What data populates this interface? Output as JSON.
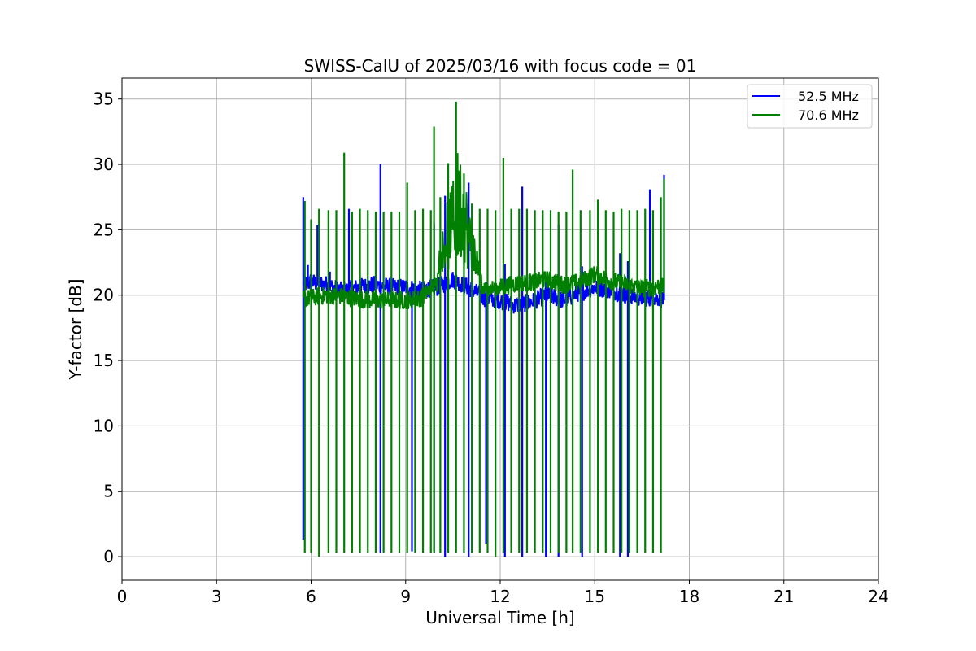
{
  "chart_data": {
    "type": "line",
    "title": "SWISS-CalU of 2025/03/16 with focus code = 01",
    "xlabel": "Universal Time [h]",
    "ylabel": "Y-factor [dB]",
    "xlim": [
      0,
      24
    ],
    "ylim": [
      -1.8,
      36.6
    ],
    "xticks": [
      0,
      3,
      6,
      9,
      12,
      15,
      18,
      21,
      24
    ],
    "yticks": [
      0,
      5,
      10,
      15,
      20,
      25,
      30,
      35
    ],
    "grid": true,
    "legend_position": "top-right",
    "series": [
      {
        "name": "52.5 MHz",
        "color": "#0000ff",
        "baseline": [
          [
            5.75,
            20.8
          ],
          [
            6.0,
            21.0
          ],
          [
            6.5,
            20.8
          ],
          [
            7.0,
            20.3
          ],
          [
            7.5,
            20.6
          ],
          [
            8.0,
            20.8
          ],
          [
            8.5,
            20.6
          ],
          [
            9.0,
            20.6
          ],
          [
            9.5,
            20.4
          ],
          [
            10.0,
            20.6
          ],
          [
            10.5,
            21.2
          ],
          [
            11.0,
            20.6
          ],
          [
            11.5,
            19.8
          ],
          [
            12.0,
            19.6
          ],
          [
            12.5,
            19.2
          ],
          [
            13.0,
            19.5
          ],
          [
            13.5,
            20.0
          ],
          [
            14.0,
            19.6
          ],
          [
            14.5,
            20.2
          ],
          [
            15.0,
            20.6
          ],
          [
            15.5,
            20.4
          ],
          [
            16.0,
            20.0
          ],
          [
            16.5,
            19.8
          ],
          [
            17.0,
            19.8
          ],
          [
            17.2,
            19.6
          ]
        ],
        "spikes": [
          [
            5.75,
            27.5,
            1.3
          ],
          [
            5.9,
            22.3,
            null
          ],
          [
            6.2,
            25.4,
            null
          ],
          [
            6.6,
            21.8,
            null
          ],
          [
            7.2,
            26.6,
            null
          ],
          [
            8.2,
            30.0,
            0.3
          ],
          [
            9.2,
            21.0,
            0.4
          ],
          [
            9.9,
            25.5,
            0.3
          ],
          [
            10.25,
            27.6,
            0.0
          ],
          [
            11.0,
            28.6,
            0.0
          ],
          [
            11.55,
            21.0,
            1.0
          ],
          [
            12.15,
            22.4,
            0.0
          ],
          [
            12.7,
            28.3,
            0.0
          ],
          [
            13.45,
            21.0,
            0.0
          ],
          [
            13.85,
            25.4,
            0.0
          ],
          [
            14.6,
            22.2,
            0.0
          ],
          [
            15.8,
            23.2,
            0.0
          ],
          [
            16.05,
            22.6,
            0.0
          ],
          [
            16.75,
            28.1,
            null
          ],
          [
            17.2,
            29.2,
            null
          ]
        ]
      },
      {
        "name": "70.6 MHz",
        "color": "#008000",
        "baseline": [
          [
            5.75,
            19.7
          ],
          [
            6.0,
            19.8
          ],
          [
            6.5,
            20.0
          ],
          [
            7.0,
            19.9
          ],
          [
            7.5,
            19.7
          ],
          [
            8.0,
            19.6
          ],
          [
            8.5,
            19.6
          ],
          [
            9.0,
            19.6
          ],
          [
            9.5,
            19.8
          ],
          [
            10.0,
            21.0
          ],
          [
            10.5,
            21.5
          ],
          [
            11.0,
            20.6
          ],
          [
            11.5,
            20.4
          ],
          [
            12.0,
            20.6
          ],
          [
            12.5,
            20.9
          ],
          [
            13.0,
            21.0
          ],
          [
            13.5,
            21.2
          ],
          [
            14.0,
            20.8
          ],
          [
            14.5,
            21.0
          ],
          [
            15.0,
            21.6
          ],
          [
            15.5,
            21.1
          ],
          [
            16.0,
            20.8
          ],
          [
            16.5,
            20.5
          ],
          [
            17.0,
            20.7
          ],
          [
            17.2,
            20.6
          ]
        ],
        "spikes": [
          [
            5.8,
            27.2,
            0.3
          ],
          [
            6.0,
            25.8,
            0.3
          ],
          [
            6.25,
            26.6,
            0.0
          ],
          [
            6.55,
            26.5,
            0.3
          ],
          [
            6.8,
            26.5,
            0.3
          ],
          [
            7.05,
            30.9,
            0.3
          ],
          [
            7.3,
            26.4,
            0.3
          ],
          [
            7.55,
            26.6,
            0.3
          ],
          [
            7.8,
            26.5,
            0.3
          ],
          [
            8.05,
            26.4,
            0.3
          ],
          [
            8.3,
            26.4,
            0.3
          ],
          [
            8.55,
            26.4,
            0.3
          ],
          [
            8.8,
            26.4,
            0.3
          ],
          [
            9.05,
            28.6,
            0.3
          ],
          [
            9.3,
            26.5,
            0.3
          ],
          [
            9.55,
            26.6,
            0.3
          ],
          [
            9.8,
            26.5,
            0.3
          ],
          [
            9.9,
            32.9,
            0.3
          ],
          [
            10.1,
            27.5,
            0.3
          ],
          [
            10.35,
            30.1,
            0.3
          ],
          [
            10.6,
            34.8,
            0.3
          ],
          [
            10.85,
            29.3,
            0.3
          ],
          [
            11.1,
            27.0,
            0.3
          ],
          [
            11.35,
            26.6,
            0.3
          ],
          [
            11.6,
            26.6,
            0.3
          ],
          [
            11.85,
            26.5,
            0.0
          ],
          [
            12.1,
            30.5,
            0.3
          ],
          [
            12.35,
            26.6,
            0.3
          ],
          [
            12.6,
            26.6,
            0.3
          ],
          [
            12.85,
            26.6,
            0.3
          ],
          [
            13.1,
            26.5,
            0.3
          ],
          [
            13.35,
            26.5,
            0.3
          ],
          [
            13.6,
            26.5,
            0.3
          ],
          [
            13.85,
            26.4,
            0.3
          ],
          [
            14.1,
            26.4,
            0.3
          ],
          [
            14.3,
            29.6,
            0.3
          ],
          [
            14.55,
            26.5,
            0.3
          ],
          [
            14.85,
            26.5,
            0.3
          ],
          [
            15.1,
            27.3,
            0.3
          ],
          [
            15.35,
            26.5,
            0.3
          ],
          [
            15.6,
            26.4,
            0.3
          ],
          [
            15.85,
            26.6,
            0.3
          ],
          [
            16.1,
            26.5,
            0.3
          ],
          [
            16.35,
            26.5,
            0.3
          ],
          [
            16.6,
            26.6,
            0.3
          ],
          [
            16.85,
            26.5,
            0.3
          ],
          [
            17.1,
            27.5,
            0.3
          ],
          [
            17.2,
            28.9,
            null
          ]
        ],
        "burst": {
          "from": 10.0,
          "to": 11.4,
          "max": 31.5
        }
      }
    ]
  }
}
